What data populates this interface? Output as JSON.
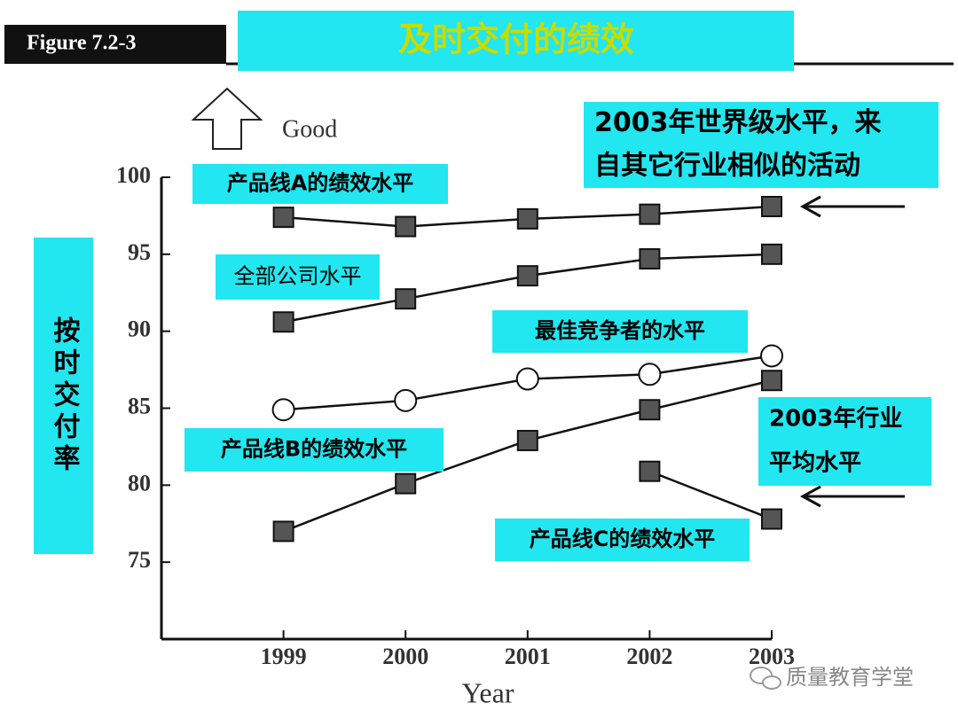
{
  "figure_label": "Figure 7.2-3",
  "watermark": "质量教育学堂",
  "chart_data": {
    "type": "line",
    "title": "及时交付的绩效",
    "top_label": "Good",
    "y_label": "按时交付率",
    "x_label": "Year",
    "x": [
      1999,
      2000,
      2001,
      2002,
      2003
    ],
    "xlim": [
      1998,
      2003
    ],
    "xticks": [
      1999,
      2000,
      2001,
      2002,
      2003
    ],
    "ylim": [
      70,
      100
    ],
    "yticks": [
      75,
      80,
      85,
      90,
      95,
      100
    ],
    "series": [
      {
        "name": "产品线A的绩效水平",
        "color": "#555555",
        "marker": "square",
        "values": [
          97.4,
          96.8,
          97.3,
          97.6,
          98.1
        ]
      },
      {
        "name": "全部公司水平",
        "color": "#555555",
        "marker": "square",
        "values": [
          90.6,
          92.1,
          93.6,
          94.7,
          95.0
        ]
      },
      {
        "name": "最佳竞争者的水平",
        "color": "#ffffff",
        "marker": "circle",
        "values": [
          84.9,
          85.5,
          86.9,
          87.2,
          88.4
        ]
      },
      {
        "name": "产品线B的绩效水平",
        "color": "#555555",
        "marker": "square",
        "values": [
          77.0,
          80.1,
          82.9,
          84.9,
          86.8
        ]
      },
      {
        "name": "产品线C的绩效水平",
        "color": "#555555",
        "marker": "square",
        "values": [
          null,
          null,
          null,
          80.9,
          77.8
        ]
      }
    ],
    "annotations": [
      {
        "lines": [
          "2003年世界级水平，来",
          "自其它行业相似的活动"
        ]
      },
      {
        "lines": [
          "2003年行业",
          "平均水平"
        ]
      }
    ]
  }
}
